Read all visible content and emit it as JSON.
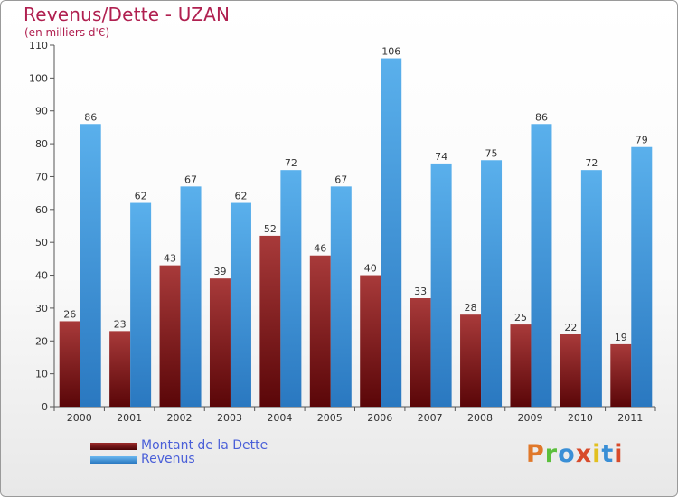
{
  "header": {
    "title": "Revenus/Dette - UZAN",
    "subtitle": "(en milliers d'€)"
  },
  "legend": {
    "items": [
      {
        "label": "Montant de la Dette",
        "color": "#6b0e10"
      },
      {
        "label": "Revenus",
        "color": "#3d8fd6"
      }
    ]
  },
  "logo": {
    "text": "Proxiti",
    "letter_colors": [
      "#e0782a",
      "#5bbf3c",
      "#3a8fd6",
      "#d84a2a",
      "#e2c020",
      "#3a8fd6",
      "#d84a2a"
    ]
  },
  "colors": {
    "dette": "#6b0e10",
    "dette_light": "#a83a3a",
    "revenus": "#2e7fc9",
    "revenus_light": "#5ab0ec",
    "title": "#b02050"
  },
  "chart_data": {
    "type": "bar",
    "title": "Revenus/Dette - UZAN",
    "subtitle": "(en milliers d'€)",
    "categories": [
      "2000",
      "2001",
      "2002",
      "2003",
      "2004",
      "2005",
      "2006",
      "2007",
      "2008",
      "2009",
      "2010",
      "2011"
    ],
    "series": [
      {
        "name": "Montant de la Dette",
        "values": [
          26,
          23,
          43,
          39,
          52,
          46,
          40,
          33,
          28,
          25,
          22,
          19
        ]
      },
      {
        "name": "Revenus",
        "values": [
          86,
          62,
          67,
          62,
          72,
          67,
          106,
          74,
          75,
          86,
          72,
          79
        ]
      }
    ],
    "ylim": [
      0,
      110
    ],
    "yticks": [
      0,
      10,
      20,
      30,
      40,
      50,
      60,
      70,
      80,
      90,
      100,
      110
    ],
    "grid": false,
    "legend_position": "bottom-left"
  }
}
